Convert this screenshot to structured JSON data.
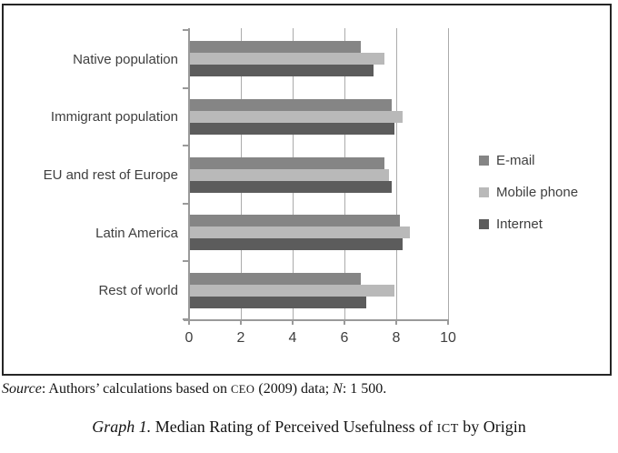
{
  "chart_data": {
    "type": "bar",
    "orientation": "horizontal",
    "categories": [
      "Native population",
      "Immigrant population",
      "EU and rest of Europe",
      "Latin America",
      "Rest of world"
    ],
    "series": [
      {
        "name": "E-mail",
        "color": "#858585",
        "values": [
          6.6,
          7.8,
          7.5,
          8.1,
          6.6
        ]
      },
      {
        "name": "Mobile phone",
        "color": "#b9b9b9",
        "values": [
          7.5,
          8.2,
          7.7,
          8.5,
          7.9
        ]
      },
      {
        "name": "Internet",
        "color": "#5c5c5c",
        "values": [
          7.1,
          7.9,
          7.8,
          8.2,
          6.8
        ]
      }
    ],
    "x_ticks": [
      "0",
      "2",
      "4",
      "6",
      "8",
      "10"
    ],
    "xlim": [
      0,
      10
    ],
    "grid": true,
    "legend_position": "right",
    "colors": {
      "grid": "#ababab",
      "axis": "#9a9a9a",
      "tick_text": "#3f3f3f"
    }
  },
  "footer": {
    "source": {
      "label": "Source",
      "text_a": ": Authors’ calculations based on ",
      "org": "CEO",
      "text_b": " (2009) data; ",
      "n": "N",
      "text_c": ": 1 500."
    },
    "caption": {
      "label": "Graph 1.",
      "text_a": " Median Rating of Perceived Usefulness of ",
      "acronym": "ICT",
      "text_b": " by Origin"
    }
  }
}
